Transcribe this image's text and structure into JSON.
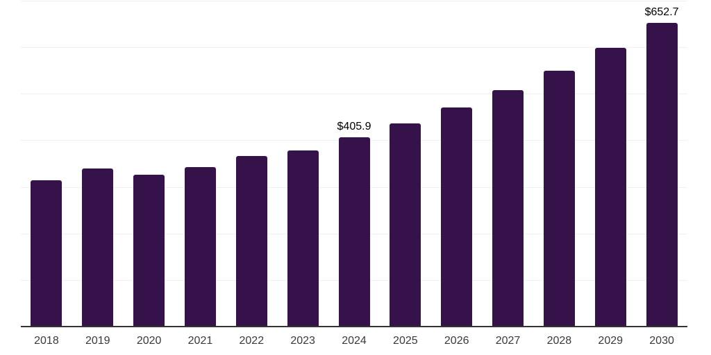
{
  "chart_data": {
    "type": "bar",
    "title": "",
    "xlabel": "",
    "ylabel": "",
    "categories": [
      "2018",
      "2019",
      "2020",
      "2021",
      "2022",
      "2023",
      "2024",
      "2025",
      "2026",
      "2027",
      "2028",
      "2029",
      "2030"
    ],
    "values": [
      314,
      340,
      326,
      343,
      366,
      378,
      405.9,
      437,
      471,
      508,
      550,
      599,
      652.7
    ],
    "data_labels": [
      null,
      null,
      null,
      null,
      null,
      null,
      "$405.9",
      null,
      null,
      null,
      null,
      null,
      "$652.7"
    ],
    "ylim": [
      0,
      700
    ],
    "gridline_step": 100,
    "grid": true,
    "legend": false,
    "colors": {
      "bar": "#35124a",
      "gridline": "#f0f0f0",
      "axis": "#333333",
      "tick_label": "#3a3a3a",
      "data_label": "#000000",
      "background": "#ffffff"
    }
  }
}
